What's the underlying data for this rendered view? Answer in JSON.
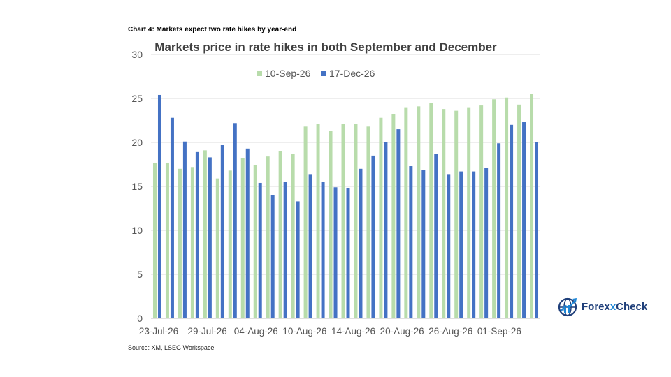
{
  "caption": "Chart 4: Markets expect two rate hikes by year-end",
  "source": "Source: XM, LSEG Workspace",
  "logo": {
    "part1": "Forex",
    "part2": "x",
    "part3": "Check",
    "icon": "globe-chart-icon"
  },
  "chart_data": {
    "type": "bar",
    "title": "Markets price in rate hikes in both September and December",
    "xlabel": "",
    "ylabel": "",
    "ylim": [
      0,
      30
    ],
    "yticks": [
      0,
      5,
      10,
      15,
      20,
      25,
      30
    ],
    "grid": true,
    "legend_position": "top-center",
    "xtick_labels": [
      "23-Jul-26",
      "29-Jul-26",
      "04-Aug-26",
      "10-Aug-26",
      "14-Aug-26",
      "20-Aug-26",
      "26-Aug-26",
      "01-Sep-26"
    ],
    "categories": [
      "23-Jul-26",
      "24-Jul-26",
      "27-Jul-26",
      "28-Jul-26",
      "29-Jul-26",
      "30-Jul-26",
      "31-Jul-26",
      "03-Aug-26",
      "04-Aug-26",
      "05-Aug-26",
      "06-Aug-26",
      "07-Aug-26",
      "10-Aug-26",
      "11-Aug-26",
      "12-Aug-26",
      "13-Aug-26",
      "14-Aug-26",
      "17-Aug-26",
      "18-Aug-26",
      "19-Aug-26",
      "20-Aug-26",
      "21-Aug-26",
      "24-Aug-26",
      "25-Aug-26",
      "26-Aug-26",
      "27-Aug-26",
      "28-Aug-26",
      "31-Aug-26",
      "01-Sep-26",
      "02-Sep-26",
      "03-Sep-26"
    ],
    "series": [
      {
        "name": "10-Sep-26",
        "color": "#b8dcab",
        "values": [
          17.7,
          17.7,
          17.0,
          17.2,
          19.1,
          15.9,
          16.8,
          18.2,
          17.4,
          18.4,
          19.0,
          18.7,
          21.8,
          22.1,
          21.3,
          22.1,
          22.1,
          21.8,
          22.8,
          23.2,
          24.0,
          24.1,
          24.5,
          23.8,
          23.6,
          24.0,
          24.2,
          24.9,
          25.1,
          24.3,
          25.5
        ]
      },
      {
        "name": "17-Dec-26",
        "color": "#4472c4",
        "values": [
          25.4,
          22.8,
          20.1,
          18.9,
          18.3,
          19.7,
          22.2,
          19.3,
          15.4,
          14.0,
          15.5,
          13.3,
          16.4,
          15.5,
          14.9,
          14.8,
          17.0,
          18.5,
          20.0,
          21.5,
          17.3,
          16.9,
          18.7,
          16.4,
          16.7,
          16.7,
          17.1,
          19.9,
          22.0,
          22.3,
          20.0
        ]
      }
    ]
  }
}
